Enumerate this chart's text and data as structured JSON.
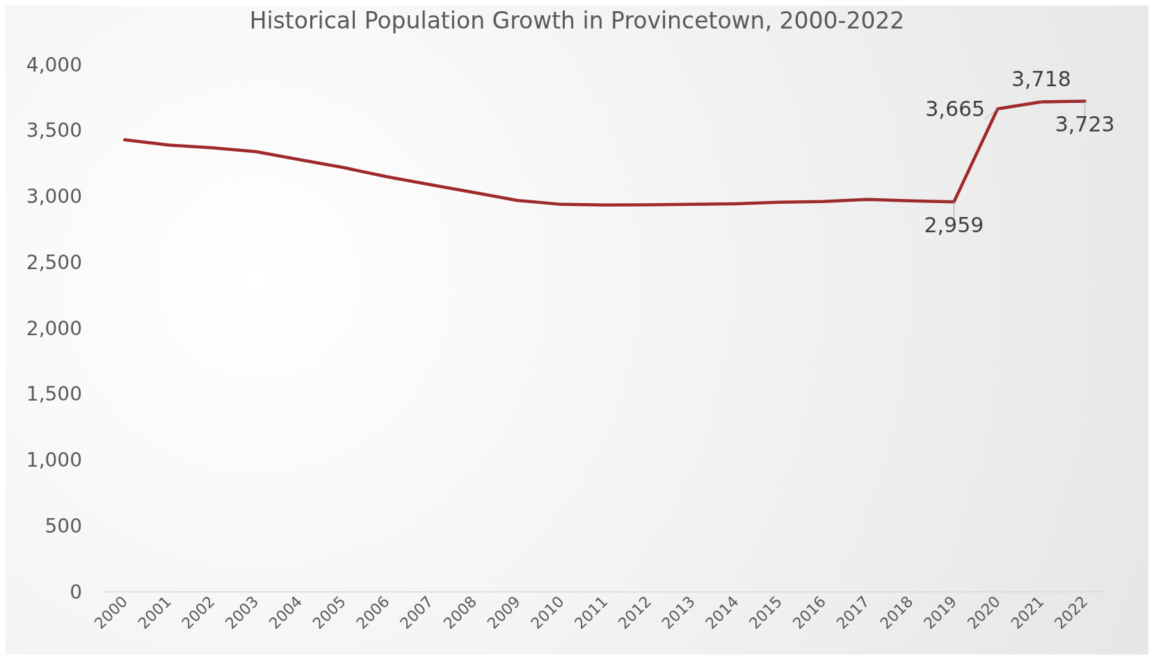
{
  "chart_data": {
    "type": "line",
    "title": "Historical Population Growth in Provincetown, 2000-2022",
    "categories": [
      "2000",
      "2001",
      "2002",
      "2003",
      "2004",
      "2005",
      "2006",
      "2007",
      "2008",
      "2009",
      "2010",
      "2011",
      "2012",
      "2013",
      "2014",
      "2015",
      "2016",
      "2017",
      "2018",
      "2019",
      "2020",
      "2021",
      "2022"
    ],
    "series": [
      {
        "color": "#9e2a2b",
        "values": [
          3430,
          3390,
          3370,
          3340,
          3280,
          3220,
          3150,
          3090,
          3030,
          2970,
          2940,
          2935,
          2937,
          2940,
          2945,
          2956,
          2962,
          2978,
          2967,
          2959,
          3665,
          3718,
          3723
        ],
        "value_labels": [
          null,
          null,
          null,
          null,
          null,
          null,
          null,
          null,
          null,
          null,
          null,
          null,
          null,
          null,
          null,
          null,
          null,
          null,
          null,
          "2,959",
          "3,665",
          "3,718",
          "3,723"
        ]
      }
    ],
    "ylim": [
      0,
      4000
    ],
    "yticks": [
      {
        "value": 0,
        "label": "0"
      },
      {
        "value": 500,
        "label": "500"
      },
      {
        "value": 1000,
        "label": "1,000"
      },
      {
        "value": 1500,
        "label": "1,500"
      },
      {
        "value": 2000,
        "label": "2,000"
      },
      {
        "value": 2500,
        "label": "2,500"
      },
      {
        "value": 3000,
        "label": "3,000"
      },
      {
        "value": 3500,
        "label": "3,500"
      },
      {
        "value": 4000,
        "label": "4,000"
      }
    ],
    "grid": false,
    "marker": "none",
    "line_style": "solid"
  }
}
